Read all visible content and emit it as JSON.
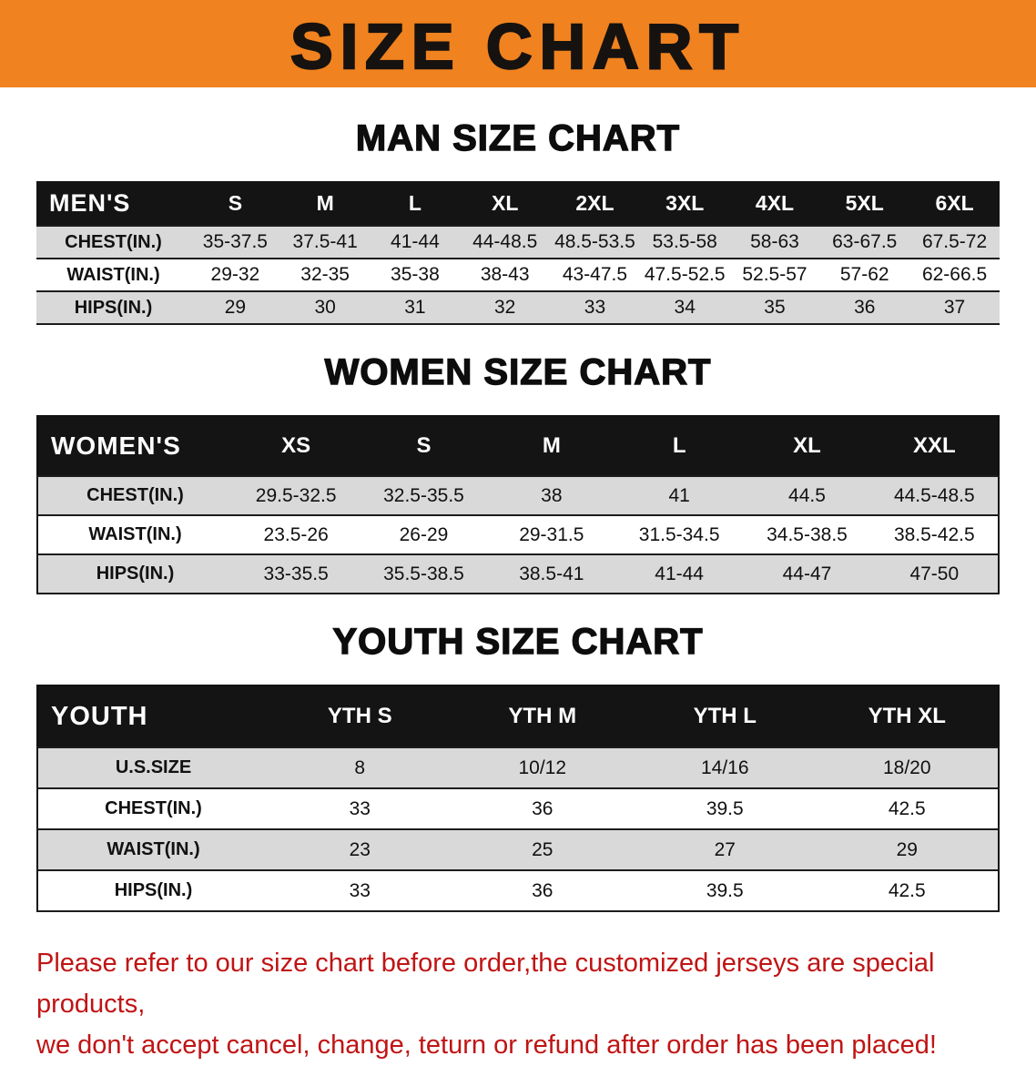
{
  "banner": {
    "title": "SIZE CHART",
    "bg_color": "#f0821f"
  },
  "men": {
    "heading": "MAN SIZE CHART",
    "table": {
      "header": [
        "MEN'S",
        "S",
        "M",
        "L",
        "XL",
        "2XL",
        "3XL",
        "4XL",
        "5XL",
        "6XL"
      ],
      "rows": [
        [
          "CHEST(IN.)",
          "35-37.5",
          "37.5-41",
          "41-44",
          "44-48.5",
          "48.5-53.5",
          "53.5-58",
          "58-63",
          "63-67.5",
          "67.5-72"
        ],
        [
          "WAIST(IN.)",
          "29-32",
          "32-35",
          "35-38",
          "38-43",
          "43-47.5",
          "47.5-52.5",
          "52.5-57",
          "57-62",
          "62-66.5"
        ],
        [
          "HIPS(IN.)",
          "29",
          "30",
          "31",
          "32",
          "33",
          "34",
          "35",
          "36",
          "37"
        ]
      ]
    }
  },
  "women": {
    "heading": "WOMEN SIZE CHART",
    "table": {
      "header": [
        "WOMEN'S",
        "XS",
        "S",
        "M",
        "L",
        "XL",
        "XXL"
      ],
      "rows": [
        [
          "CHEST(IN.)",
          "29.5-32.5",
          "32.5-35.5",
          "38",
          "41",
          "44.5",
          "44.5-48.5"
        ],
        [
          "WAIST(IN.)",
          "23.5-26",
          "26-29",
          "29-31.5",
          "31.5-34.5",
          "34.5-38.5",
          "38.5-42.5"
        ],
        [
          "HIPS(IN.)",
          "33-35.5",
          "35.5-38.5",
          "38.5-41",
          "41-44",
          "44-47",
          "47-50"
        ]
      ]
    }
  },
  "youth": {
    "heading": "YOUTH SIZE CHART",
    "table": {
      "header": [
        "YOUTH",
        "YTH S",
        "YTH M",
        "YTH L",
        "YTH XL"
      ],
      "rows": [
        [
          "U.S.SIZE",
          "8",
          "10/12",
          "14/16",
          "18/20"
        ],
        [
          "CHEST(IN.)",
          "33",
          "36",
          "39.5",
          "42.5"
        ],
        [
          "WAIST(IN.)",
          "23",
          "25",
          "27",
          "29"
        ],
        [
          "HIPS(IN.)",
          "33",
          "36",
          "39.5",
          "42.5"
        ]
      ]
    }
  },
  "footer": {
    "line1": "Please refer to our size chart before order,the customized jerseys are special products,",
    "line2": "we don't accept cancel, change, teturn or refund after order has been placed!",
    "text_color": "#c01414"
  }
}
